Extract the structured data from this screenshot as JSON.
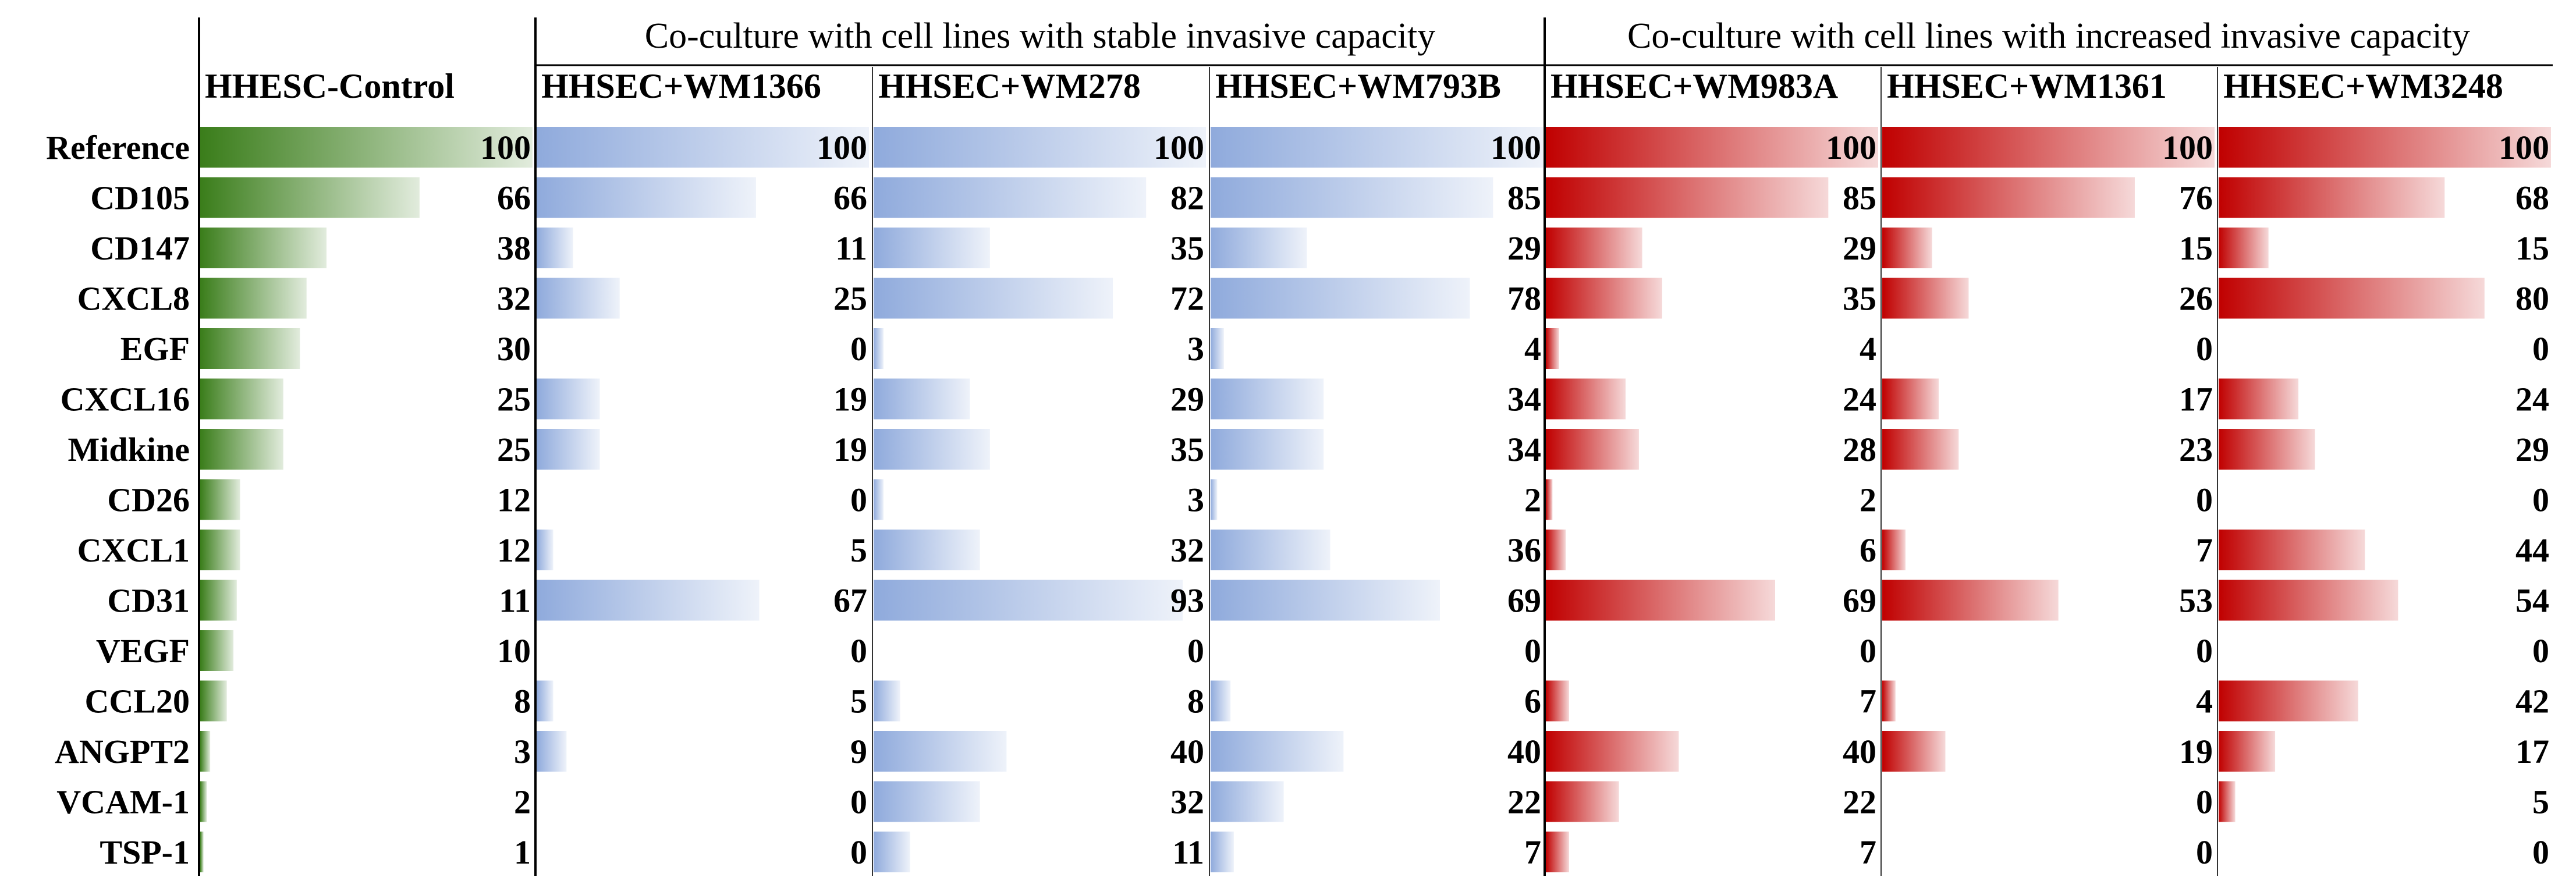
{
  "chart_data": {
    "type": "table",
    "title": "",
    "row_header": "",
    "groups": [
      {
        "label": "",
        "columns": [
          0
        ]
      },
      {
        "label": "Co-culture with cell lines with stable invasive capacity",
        "columns": [
          1,
          2,
          3
        ]
      },
      {
        "label": "Co-culture with cell lines with increased invasive capacity",
        "columns": [
          4,
          5,
          6
        ]
      }
    ],
    "rows": [
      "Reference",
      "CD105",
      "CD147",
      "CXCL8",
      "EGF",
      "CXCL16",
      "Midkine",
      "CD26",
      "CXCL1",
      "CD31",
      "VEGF",
      "CCL20",
      "ANGPT2",
      "VCAM-1",
      "TSP-1"
    ],
    "series": [
      {
        "name": "HHESC-Control",
        "color": "#3a7d1a",
        "values": [
          100,
          66,
          38,
          32,
          30,
          25,
          25,
          12,
          12,
          11,
          10,
          8,
          3,
          2,
          1
        ]
      },
      {
        "name": "HHSEC+WM1366",
        "color": "#8faadc",
        "values": [
          100,
          66,
          11,
          25,
          0,
          19,
          19,
          0,
          5,
          67,
          0,
          5,
          9,
          0,
          0
        ]
      },
      {
        "name": "HHSEC+WM278",
        "color": "#8faadc",
        "values": [
          100,
          82,
          35,
          72,
          3,
          29,
          35,
          3,
          32,
          93,
          0,
          8,
          40,
          32,
          11
        ]
      },
      {
        "name": "HHSEC+WM793B",
        "color": "#8faadc",
        "values": [
          100,
          85,
          29,
          78,
          4,
          34,
          34,
          2,
          36,
          69,
          0,
          6,
          40,
          22,
          7
        ]
      },
      {
        "name": "HHSEC+WM983A",
        "color": "#c00000",
        "values": [
          100,
          85,
          29,
          35,
          4,
          24,
          28,
          2,
          6,
          69,
          0,
          7,
          40,
          22,
          7
        ]
      },
      {
        "name": "HHSEC+WM1361",
        "color": "#c00000",
        "values": [
          100,
          76,
          15,
          26,
          0,
          17,
          23,
          0,
          7,
          53,
          0,
          4,
          19,
          0,
          0
        ]
      },
      {
        "name": "HHSEC+WM3248",
        "color": "#c00000",
        "values": [
          100,
          68,
          15,
          80,
          0,
          24,
          29,
          0,
          44,
          54,
          0,
          42,
          17,
          5,
          0
        ]
      }
    ],
    "xlim": [
      0,
      100
    ]
  }
}
